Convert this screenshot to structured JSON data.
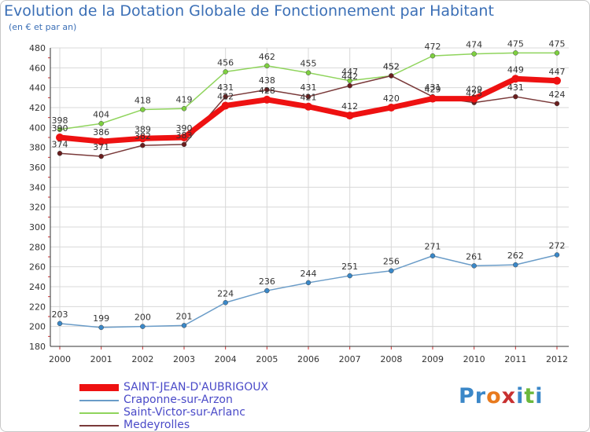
{
  "title": "Evolution de la Dotation Globale de Fonctionnement par Habitant",
  "subtitle": "(en € et par an)",
  "brand": {
    "parts": [
      "Pr",
      "o",
      "x",
      "i",
      "t",
      "i"
    ],
    "colors": [
      "#3b87c8",
      "#e87a1e",
      "#c83030",
      "#3b87c8",
      "#6cb83c",
      "#3b87c8"
    ]
  },
  "chart_data": {
    "type": "line",
    "title": "Evolution de la Dotation Globale de Fonctionnement par Habitant",
    "ylabel": "(en € et par an)",
    "xlabel": "",
    "x": [
      "2000",
      "2001",
      "2002",
      "2003",
      "2004",
      "2005",
      "2006",
      "2007",
      "2008",
      "2009",
      "2010",
      "2011",
      "2012"
    ],
    "ylim": [
      180,
      480
    ],
    "yticks": [
      "180",
      "200",
      "220",
      "240",
      "260",
      "280",
      "300",
      "320",
      "340",
      "360",
      "380",
      "400",
      "420",
      "440",
      "460",
      "480"
    ],
    "grid": true,
    "legend_position": "bottom-left",
    "series": [
      {
        "name": "Saint-Victor-sur-Arlanc",
        "color": "#8fd45c",
        "marker": "#7ed040",
        "values": [
          398,
          404,
          418,
          419,
          456,
          462,
          455,
          447,
          452,
          472,
          474,
          475,
          475
        ],
        "labels": [
          "398",
          "404",
          "418",
          "419",
          "456",
          "462",
          "455",
          "447",
          "452",
          "472",
          "474",
          "475",
          "475"
        ]
      },
      {
        "name": "Medeyrolles",
        "color": "#7a3a3a",
        "marker": "#6a1e1e",
        "values": [
          374,
          371,
          382,
          383,
          431,
          438,
          431,
          442,
          452,
          431,
          425,
          431,
          424
        ],
        "labels": [
          "374",
          "371",
          "382",
          "383",
          "431",
          "438",
          "431",
          "442",
          "452",
          "431",
          "425",
          "431",
          "424"
        ]
      },
      {
        "name": "Craponne-sur-Arzon",
        "color": "#6a9cc8",
        "marker": "#3a88c8",
        "values": [
          203,
          199,
          200,
          201,
          224,
          236,
          244,
          251,
          256,
          271,
          261,
          262,
          272
        ],
        "labels": [
          "203",
          "199",
          "200",
          "201",
          "224",
          "236",
          "244",
          "251",
          "256",
          "271",
          "261",
          "262",
          "272"
        ]
      },
      {
        "name": "SAINT-JEAN-D'AUBRIGOUX",
        "color": "#ee1111",
        "marker": "#ee1111",
        "values": [
          390,
          386,
          389,
          390,
          422,
          428,
          421,
          412,
          420,
          429,
          429,
          449,
          447
        ],
        "labels": [
          "390",
          "386",
          "389",
          "390",
          "422",
          "428",
          "421",
          "412",
          "420",
          "429",
          "429",
          "449",
          "447"
        ]
      }
    ],
    "legend": [
      "SAINT-JEAN-D'AUBRIGOUX",
      "Craponne-sur-Arzon",
      "Saint-Victor-sur-Arlanc",
      "Medeyrolles"
    ]
  }
}
